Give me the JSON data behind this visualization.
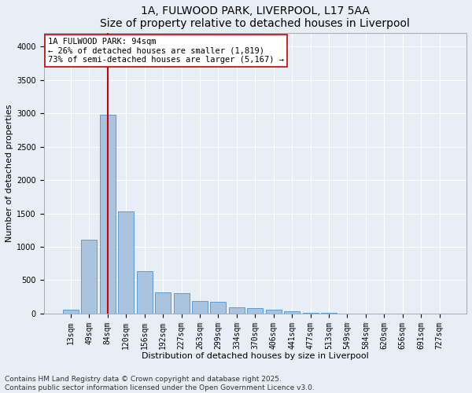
{
  "title_line1": "1A, FULWOOD PARK, LIVERPOOL, L17 5AA",
  "title_line2": "Size of property relative to detached houses in Liverpool",
  "xlabel": "Distribution of detached houses by size in Liverpool",
  "ylabel": "Number of detached properties",
  "categories": [
    "13sqm",
    "49sqm",
    "84sqm",
    "120sqm",
    "156sqm",
    "192sqm",
    "227sqm",
    "263sqm",
    "299sqm",
    "334sqm",
    "370sqm",
    "406sqm",
    "441sqm",
    "477sqm",
    "513sqm",
    "549sqm",
    "584sqm",
    "620sqm",
    "656sqm",
    "691sqm",
    "727sqm"
  ],
  "values": [
    55,
    1110,
    2980,
    1530,
    640,
    320,
    310,
    185,
    180,
    90,
    80,
    55,
    35,
    10,
    5,
    0,
    0,
    0,
    0,
    0,
    0
  ],
  "bar_color": "#aac4e0",
  "bar_edge_color": "#5b9bd5",
  "vline_color": "#cc0000",
  "vline_x_index": 2,
  "annotation_text": "1A FULWOOD PARK: 94sqm\n← 26% of detached houses are smaller (1,819)\n73% of semi-detached houses are larger (5,167) →",
  "annotation_box_color": "#ffffff",
  "annotation_box_edge_color": "#cc0000",
  "ylim": [
    0,
    4200
  ],
  "yticks": [
    0,
    500,
    1000,
    1500,
    2000,
    2500,
    3000,
    3500,
    4000
  ],
  "bg_color": "#e8eef5",
  "plot_bg_color": "#e8eef5",
  "grid_color": "#ffffff",
  "footer_line1": "Contains HM Land Registry data © Crown copyright and database right 2025.",
  "footer_line2": "Contains public sector information licensed under the Open Government Licence v3.0.",
  "footer_fontsize": 6.5,
  "title_fontsize": 10,
  "subtitle_fontsize": 9,
  "axis_label_fontsize": 8,
  "tick_fontsize": 7,
  "ann_fontsize": 7.5
}
